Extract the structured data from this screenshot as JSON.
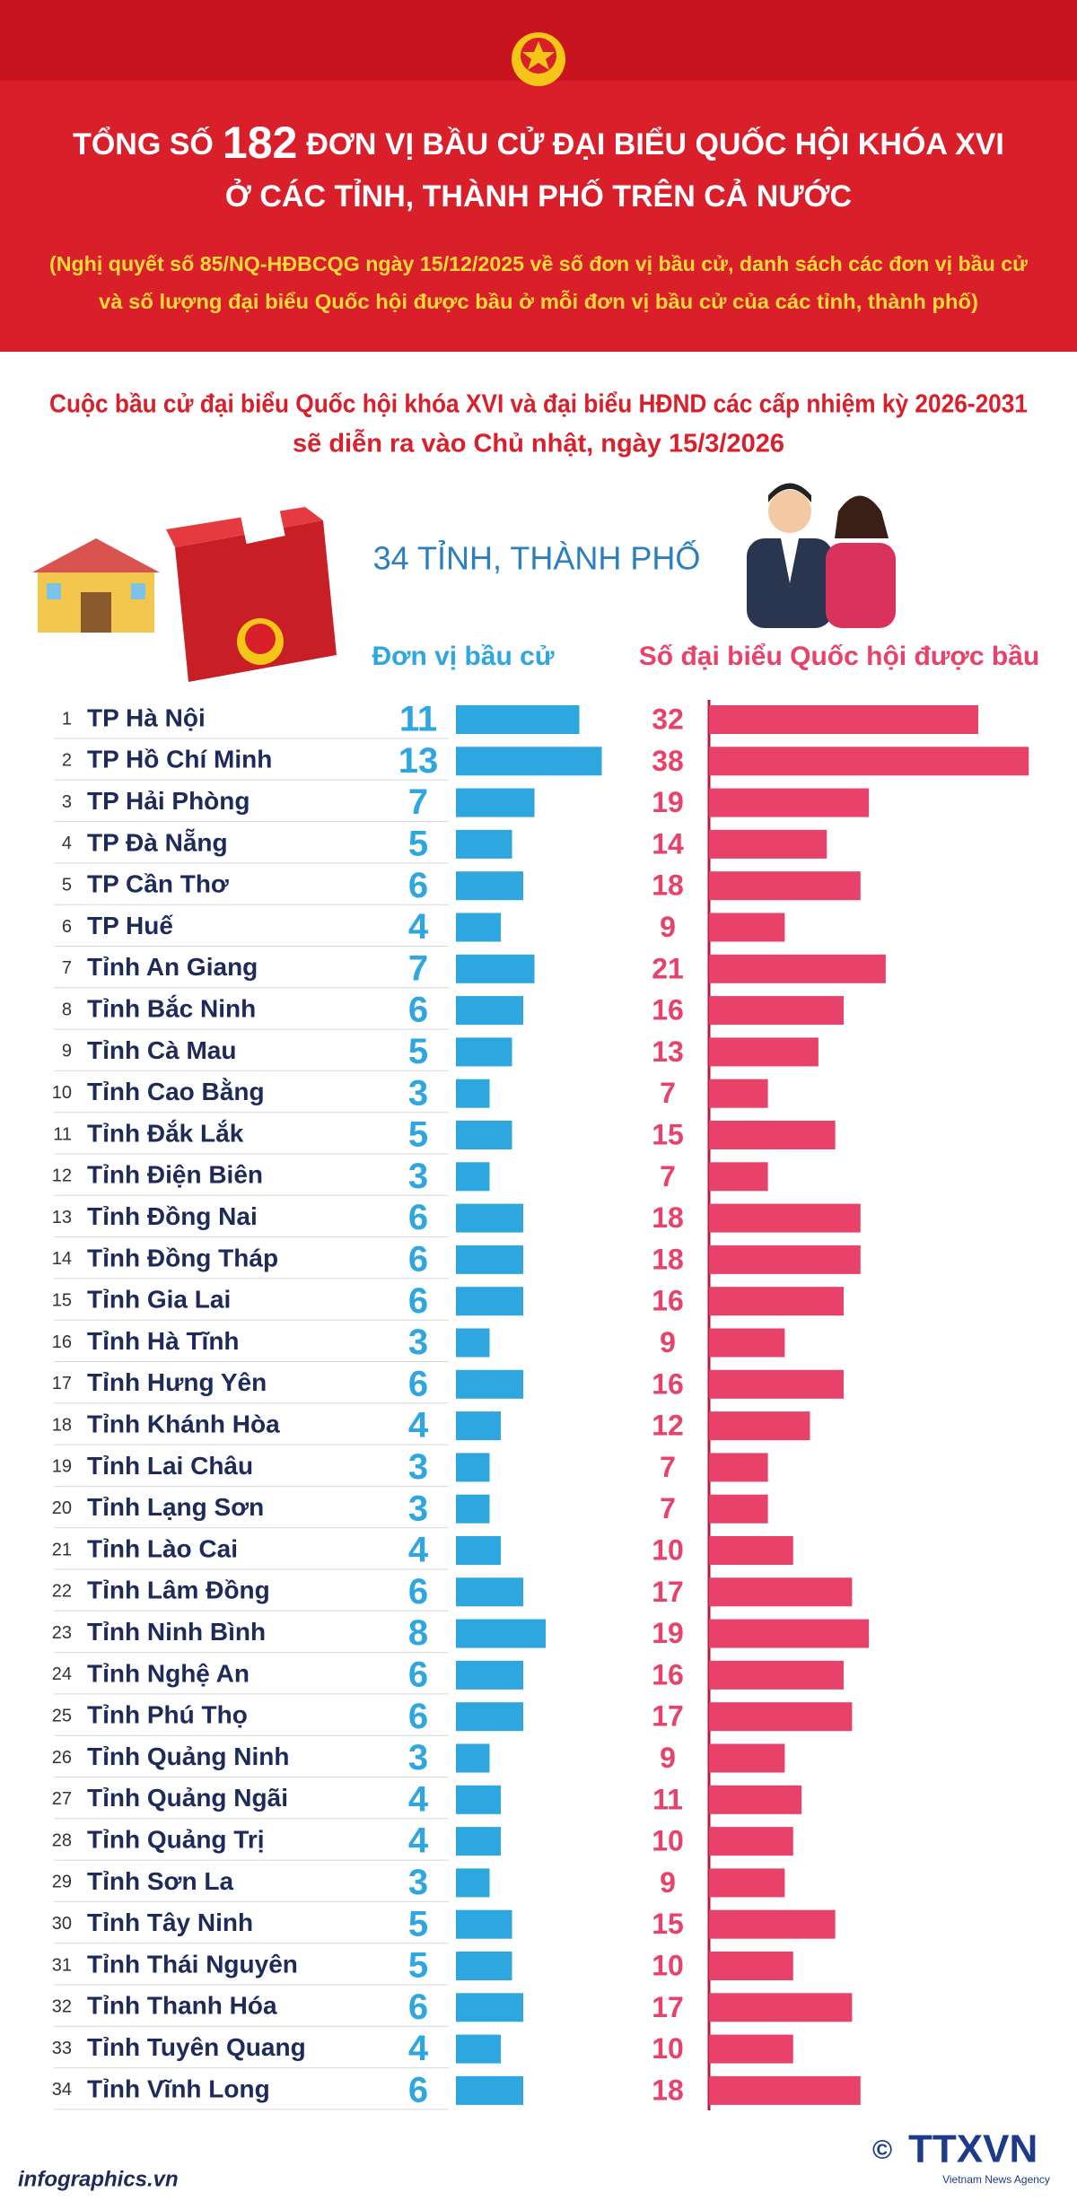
{
  "header": {
    "title_line1": [
      "TỔNG SỐ",
      "182",
      "ĐƠN VỊ BẦU CỬ ĐẠI BIỂU QUỐC HỘI KHÓA XVI"
    ],
    "title_line2": "Ở CÁC TỈNH, THÀNH PHỐ TRÊN CẢ NƯỚC",
    "note_line1": "(Nghị quyết số 85/NQ-HĐBCQG ngày 15/12/2025 về số đơn vị bầu cử, danh sách các đơn vị bầu cử",
    "note_line2": "và số lượng đại biểu Quốc hội được bầu ở mỗi đơn vị bầu cử của các tỉnh, thành phố)"
  },
  "chart_data": {
    "type": "bar",
    "subtitle_line1": "Cuộc bầu cử đại biểu Quốc hội khóa XVI và đại biểu HĐND các cấp nhiệm kỳ 2026-2031",
    "subtitle_line2": "sẽ diễn ra vào Chủ nhật, ngày 15/3/2026",
    "caption": "34 TỈNH, THÀNH PHỐ",
    "row_numbers": [
      1,
      2,
      3,
      4,
      5,
      6,
      7,
      8,
      9,
      10,
      11,
      12,
      13,
      14,
      15,
      16,
      17,
      18,
      19,
      20,
      21,
      22,
      23,
      24,
      25,
      26,
      27,
      28,
      29,
      30,
      31,
      32,
      33,
      34
    ],
    "categories": [
      "TP Hà Nội",
      "TP Hồ Chí Minh",
      "TP Hải Phòng",
      "TP Đà Nẵng",
      "TP Cần Thơ",
      "TP Huế",
      "Tỉnh An Giang",
      "Tỉnh Bắc Ninh",
      "Tỉnh Cà Mau",
      "Tỉnh Cao Bằng",
      "Tỉnh Đắk Lắk",
      "Tỉnh Điện Biên",
      "Tỉnh Đồng Nai",
      "Tỉnh Đồng Tháp",
      "Tỉnh Gia Lai",
      "Tỉnh Hà Tĩnh",
      "Tỉnh Hưng Yên",
      "Tỉnh Khánh Hòa",
      "Tỉnh Lai Châu",
      "Tỉnh Lạng Sơn",
      "Tỉnh Lào Cai",
      "Tỉnh Lâm Đồng",
      "Tỉnh Ninh Bình",
      "Tỉnh Nghệ An",
      "Tỉnh Phú Thọ",
      "Tỉnh Quảng Ninh",
      "Tỉnh Quảng Ngãi",
      "Tỉnh Quảng Trị",
      "Tỉnh Sơn La",
      "Tỉnh Tây Ninh",
      "Tỉnh Thái Nguyên",
      "Tỉnh Thanh Hóa",
      "Tỉnh Tuyên Quang",
      "Tỉnh Vĩnh Long"
    ],
    "series": [
      {
        "name": "Đơn vị bầu cử",
        "color": "#2ea6df",
        "values": [
          11,
          13,
          7,
          5,
          6,
          4,
          7,
          6,
          5,
          3,
          5,
          3,
          6,
          6,
          6,
          3,
          6,
          4,
          3,
          3,
          4,
          6,
          8,
          6,
          6,
          3,
          4,
          4,
          3,
          5,
          5,
          6,
          4,
          6
        ]
      },
      {
        "name": "Số đại biểu Quốc hội được bầu",
        "color": "#e8416a",
        "values": [
          32,
          38,
          19,
          14,
          18,
          9,
          21,
          16,
          13,
          7,
          15,
          7,
          18,
          18,
          16,
          9,
          16,
          12,
          7,
          7,
          10,
          17,
          19,
          16,
          17,
          9,
          11,
          10,
          9,
          15,
          10,
          17,
          10,
          18
        ]
      }
    ]
  },
  "footer": {
    "site": "infographics.vn",
    "copyright": "©",
    "agency": "TTXVN",
    "agency_en": "Vietnam News Agency"
  }
}
